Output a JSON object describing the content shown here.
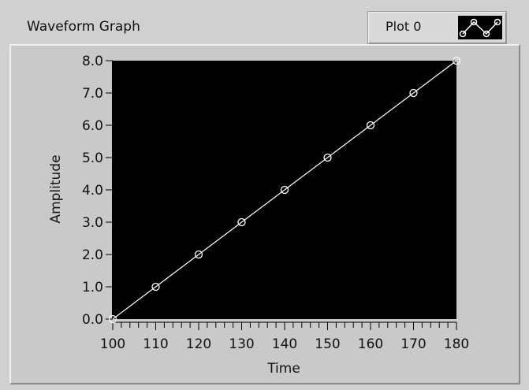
{
  "graph": {
    "title": "Waveform Graph",
    "legend_label": "Plot 0"
  },
  "chart_data": {
    "type": "line",
    "title": "",
    "xlabel": "Time",
    "ylabel": "Amplitude",
    "xlim": [
      100,
      180
    ],
    "ylim": [
      0,
      8
    ],
    "x_ticks": [
      "100",
      "110",
      "120",
      "130",
      "140",
      "150",
      "160",
      "170",
      "180"
    ],
    "y_ticks": [
      "0.0",
      "1.0",
      "2.0",
      "3.0",
      "4.0",
      "5.0",
      "6.0",
      "7.0",
      "8.0"
    ],
    "series": [
      {
        "name": "Plot 0",
        "x": [
          100,
          110,
          120,
          130,
          140,
          150,
          160,
          170,
          180
        ],
        "y": [
          0,
          1,
          2,
          3,
          4,
          5,
          6,
          7,
          8
        ]
      }
    ],
    "background_color": "#000000",
    "line_color": "#ffffff",
    "marker": "circle",
    "grid": false
  }
}
